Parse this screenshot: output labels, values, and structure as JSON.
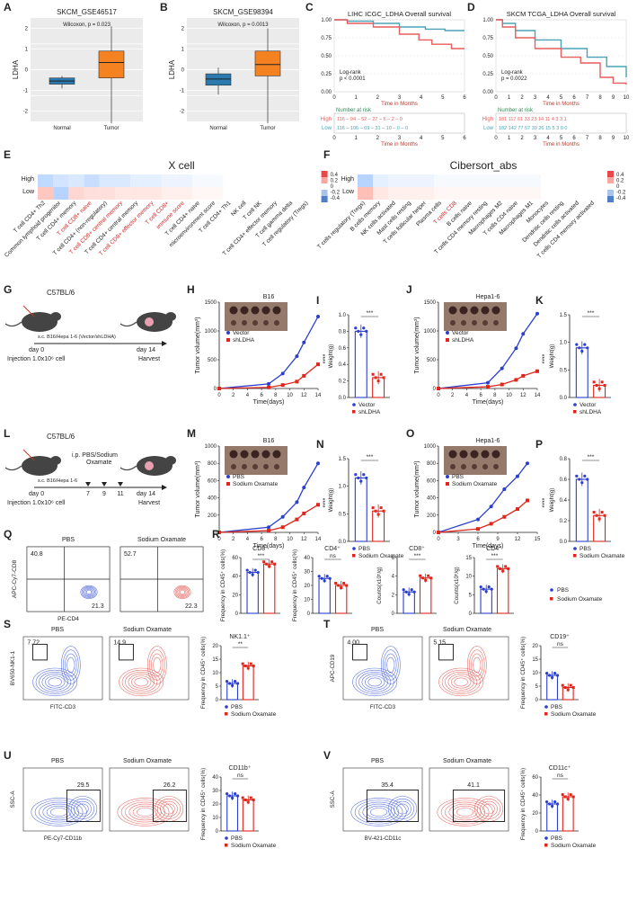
{
  "panels": {
    "A": {
      "letter": "A",
      "title": "SKCM_GSE46517",
      "stat": "Wilcoxon, p = 0.023",
      "ylabel": "LDHA",
      "groups": [
        "Normal",
        "Tumor"
      ],
      "yticks": [
        "2",
        "1",
        "0",
        "-1",
        "-2"
      ],
      "colors": {
        "normal": "#2a7ab0",
        "tumor": "#f58220"
      }
    },
    "B": {
      "letter": "B",
      "title": "SKCM_GSE98394",
      "stat": "Wilcoxon, p = 0.0013",
      "ylabel": "LDHA",
      "groups": [
        "Normal",
        "Tumor"
      ],
      "yticks": [
        "2",
        "1",
        "0",
        "-1",
        "-2"
      ]
    },
    "C": {
      "letter": "C",
      "title": "LIHC ICGC_LDHA Overall survival",
      "logrank": "Log-rank",
      "pval": "p < 0.0001",
      "xlabel": "Time in Months",
      "xticks": [
        "0",
        "1",
        "2",
        "3",
        "4",
        "5",
        "6"
      ],
      "yticks": [
        "1.00",
        "0.75",
        "0.50",
        "0.25",
        "0.00"
      ],
      "risk_title": "Number at risk",
      "risk_high": "High",
      "risk_low": "Low",
      "high_row": "116 – 94 – 52 – 27 – 6 – 2 – 0",
      "low_row": "116 – 106 – 69 – 31 – 10 – 0 – 0"
    },
    "D": {
      "letter": "D",
      "title": "SKCM TCGA_LDHA Overall survival",
      "logrank": "Log-rank",
      "pval": "p = 0.0022",
      "xlabel": "Time in Months",
      "xticks": [
        "0",
        "1",
        "2",
        "3",
        "4",
        "5",
        "6",
        "7",
        "8",
        "9",
        "10"
      ],
      "yticks": [
        "1.00",
        "0.75",
        "0.50",
        "0.25",
        "0.00"
      ],
      "risk_title": "Number at risk",
      "risk_high": "High",
      "risk_low": "Low",
      "high_row": "181 117 61 33 23 14 11 4 3 3 1",
      "low_row": "182 142 77 57 39 26 15 5 3 0 0"
    },
    "E": {
      "letter": "E",
      "title": "X cell",
      "rows": [
        "High",
        "Low"
      ],
      "legend": [
        "0.4",
        "0.2",
        "0",
        "-0.2",
        "-0.4"
      ],
      "cells": [
        {
          "label": "T cell CD4+ Th2",
          "red": false
        },
        {
          "label": "Common lymphoid progenitor",
          "red": false
        },
        {
          "label": "T cell CD4+ memory",
          "red": false
        },
        {
          "label": "T cell CD8+ naive",
          "red": true
        },
        {
          "label": "T cell CD4+ (non-regulatory)",
          "red": false
        },
        {
          "label": "T cell CD8+ central memory",
          "red": true
        },
        {
          "label": "T cell CD4+ central memory",
          "red": false
        },
        {
          "label": "T cell CD8+ effector memory",
          "red": true
        },
        {
          "label": "T cell CD8+",
          "red": true
        },
        {
          "label": "immune score",
          "red": true
        },
        {
          "label": "T cell CD4+ naive",
          "red": false
        },
        {
          "label": "microenvironment score",
          "red": false
        },
        {
          "label": "T cell CD4+ Th1",
          "red": false
        },
        {
          "label": "NK cell",
          "red": false
        },
        {
          "label": "T cell NK",
          "red": false
        },
        {
          "label": "T cell CD4+ effector memory",
          "red": false
        },
        {
          "label": "T cell gamma delta",
          "red": false
        },
        {
          "label": "T cell regulatory (Tregs)",
          "red": false
        }
      ]
    },
    "F": {
      "letter": "F",
      "title": "Cibersort_abs",
      "rows": [
        "High",
        "Low"
      ],
      "legend": [
        "0.4",
        "0.2",
        "0",
        "-0.2",
        "-0.4"
      ],
      "cells": [
        {
          "label": "T cells regulatory (Tregs)",
          "red": false
        },
        {
          "label": "B cells memory",
          "red": false
        },
        {
          "label": "NK cells activated",
          "red": false
        },
        {
          "label": "Mast cells resting",
          "red": false
        },
        {
          "label": "T cells follicular helper",
          "red": false
        },
        {
          "label": "Plasma cells",
          "red": false
        },
        {
          "label": "T cells CD8",
          "red": true
        },
        {
          "label": "B cells naive",
          "red": false
        },
        {
          "label": "T cells CD4 memory resting",
          "red": false
        },
        {
          "label": "Macrophages M2",
          "red": false
        },
        {
          "label": "T cells CD4 naive",
          "red": false
        },
        {
          "label": "Macrophages M1",
          "red": false
        },
        {
          "label": "Monocytes",
          "red": false
        },
        {
          "label": "Dendritic cells resting",
          "red": false
        },
        {
          "label": "Dendritic cells activated",
          "red": false
        },
        {
          "label": "T cells CD4 memory activated",
          "red": false
        }
      ]
    },
    "G": {
      "letter": "G",
      "strain": "C57BL/6",
      "injection_note": "s.c. B16/Hepa 1-6 (Vector/shLDHA)",
      "day0": "day 0",
      "day14": "day 14",
      "injection": "Injection 1.0x10⁶ cell",
      "harvest": "Harvest"
    },
    "H": {
      "letter": "H",
      "title": "B16",
      "ylabel": "Tumor volume(mm³)",
      "xlabel": "Time(days)",
      "xticks": [
        "0",
        "2",
        "4",
        "6",
        "8",
        "10",
        "12",
        "14"
      ],
      "yticks": [
        "1500",
        "1000",
        "500",
        "0"
      ],
      "legend": [
        "Vector",
        "shLDHA"
      ],
      "sig": "****"
    },
    "I": {
      "letter": "I",
      "ylabel": "Weight(g)",
      "yticks": [
        "1.0",
        "0.8",
        "0.6",
        "0.4",
        "0.2",
        "0.0"
      ],
      "sig": "***",
      "legend": [
        "Vector",
        "shLDHA"
      ]
    },
    "J": {
      "letter": "J",
      "title": "Hepa1-6",
      "ylabel": "Tumor volume(mm³)",
      "xlabel": "Time(days)",
      "xticks": [
        "0",
        "2",
        "4",
        "6",
        "8",
        "10",
        "12",
        "14"
      ],
      "yticks": [
        "1500",
        "1000",
        "500",
        "0"
      ],
      "legend": [
        "Vector",
        "shLDHA"
      ],
      "sig": "****"
    },
    "K": {
      "letter": "K",
      "ylabel": "Weight(g)",
      "yticks": [
        "1.5",
        "1.0",
        "0.5",
        "0.0"
      ],
      "sig": "***",
      "legend": [
        "Vector",
        "shLDHA"
      ]
    },
    "L": {
      "letter": "L",
      "strain": "C57BL/6",
      "injection_note": "s.c. B16/Hepa 1-6",
      "treat": "i.p. PBS/Sodium",
      "treat2": "Oxamate",
      "day0": "day 0",
      "d7": "7",
      "d9": "9",
      "d11": "11",
      "day14": "day 14",
      "injection": "Injection 1.0x10⁶ cell",
      "harvest": "Harvest"
    },
    "M": {
      "letter": "M",
      "title": "B16",
      "ylabel": "Tumor volume(mm³)",
      "xlabel": "Time(days)",
      "xticks": [
        "0",
        "2",
        "4",
        "6",
        "8",
        "10",
        "12",
        "14"
      ],
      "yticks": [
        "1000",
        "800",
        "600",
        "400",
        "200",
        "0"
      ],
      "legend": [
        "PBS",
        "Sodium Oxamate"
      ],
      "sig": "****"
    },
    "N": {
      "letter": "N",
      "ylabel": "Weight(g)",
      "yticks": [
        "1.5",
        "1.0",
        "0.5",
        "0.0"
      ],
      "sig": "***",
      "legend": [
        "PBS",
        "Sodium Oxamate"
      ]
    },
    "O": {
      "letter": "O",
      "title": "Hepa1-6",
      "ylabel": "Tumor volume(mm³)",
      "xlabel": "Time(days)",
      "xticks": [
        "0",
        "3",
        "6",
        "9",
        "12",
        "15"
      ],
      "yticks": [
        "1000",
        "800",
        "600",
        "400",
        "200",
        "0"
      ],
      "legend": [
        "PBS",
        "Sodium Oxamate"
      ],
      "sig": "****"
    },
    "P": {
      "letter": "P",
      "ylabel": "Weight(g)",
      "yticks": [
        "0.8",
        "0.6",
        "0.4",
        "0.2",
        "0.0"
      ],
      "sig": "***",
      "legend": [
        "PBS",
        "Sodium Oxamate"
      ]
    },
    "Q": {
      "letter": "Q",
      "pbs": "PBS",
      "ox": "Sodium Oxamate",
      "ylabel": "APC-Cy7-CD8",
      "xlabel": "PE-CD4",
      "pbs_cd8": "40.8",
      "pbs_cd4": "21.3",
      "ox_cd8": "52.7",
      "ox_cd4": "22.3"
    },
    "R": {
      "letter": "R",
      "plots": [
        {
          "title": "CD8⁺",
          "ylabel": "Frequency in CD45⁺ cells(%)",
          "yticks": [
            "60",
            "40",
            "20",
            "0"
          ],
          "sig": "***"
        },
        {
          "title": "CD4⁺",
          "ylabel": "Frequency in CD45⁺ cells(%)",
          "yticks": [
            "40",
            "30",
            "20",
            "10",
            "0"
          ],
          "sig": "ns"
        },
        {
          "title": "CD8⁺",
          "ylabel": "Counts(x10⁵/g)",
          "yticks": [
            "6",
            "4",
            "2",
            "0"
          ],
          "sig": "***"
        },
        {
          "title": "CD4⁺",
          "ylabel": "Counts(x10⁵/g)",
          "yticks": [
            "15",
            "10",
            "5",
            "0"
          ],
          "sig": "***"
        }
      ],
      "legend": [
        "PBS",
        "Sodium Oxamate"
      ]
    },
    "S": {
      "letter": "S",
      "pbs": "PBS",
      "ox": "Sodium Oxamate",
      "ylabel": "BV650-NK1-1",
      "xlabel": "FITC-CD3",
      "pbs_val": "7.72",
      "ox_val": "14.9",
      "bar_title": "NK1.1⁺",
      "bar_ylabel": "Frequency in CD45⁺ cells(%)",
      "bar_yticks": [
        "20",
        "15",
        "10",
        "5",
        "0"
      ],
      "sig": "**",
      "legend": [
        "PBS",
        "Sodium Oxamate"
      ]
    },
    "T": {
      "letter": "T",
      "pbs": "PBS",
      "ox": "Sodium Oxamate",
      "ylabel": "APC-CD19",
      "xlabel": "FITC-CD3",
      "pbs_val": "4.00",
      "ox_val": "5.15",
      "bar_title": "CD19⁺",
      "bar_ylabel": "Frequency in CD45⁺ cells(%)",
      "bar_yticks": [
        "20",
        "15",
        "10",
        "5",
        "0"
      ],
      "sig": "ns",
      "legend": [
        "PBS",
        "Sodium Oxamate"
      ]
    },
    "U": {
      "letter": "U",
      "pbs": "PBS",
      "ox": "Sodium Oxamate",
      "ylabel": "SSC-A",
      "xlabel": "PE-Cy7-CD11b",
      "pbs_val": "29.5",
      "ox_val": "26.2",
      "bar_title": "CD11b⁺",
      "bar_ylabel": "Frequency in CD45⁺ cells(%)",
      "bar_yticks": [
        "40",
        "30",
        "20",
        "10",
        "0"
      ],
      "sig": "ns",
      "legend": [
        "PBS",
        "Sodium Oxamate"
      ]
    },
    "V": {
      "letter": "V",
      "pbs": "PBS",
      "ox": "Sodium Oxamate",
      "ylabel": "SSC-A",
      "xlabel": "BV-421-CD11c",
      "pbs_val": "35.4",
      "ox_val": "41.1",
      "bar_title": "CD11c⁺",
      "bar_ylabel": "Frequency in CD45⁺ cells(%)",
      "bar_yticks": [
        "60",
        "40",
        "20",
        "0"
      ],
      "sig": "ns",
      "legend": [
        "PBS",
        "Sodium Oxamate"
      ]
    }
  },
  "colors": {
    "blue": "#2b3fcf",
    "red": "#e0251b",
    "box_blue": "#2a7ab0",
    "box_orange": "#f58220",
    "km_high": "#e85d5d",
    "km_low": "#4aa3b5"
  },
  "chart_data": [
    {
      "type": "box",
      "panel": "A",
      "categories": [
        "Normal",
        "Tumor"
      ],
      "median": [
        -0.55,
        0.35
      ],
      "q1": [
        -0.7,
        -0.4
      ],
      "q3": [
        -0.4,
        0.9
      ],
      "whisker": [
        [
          -0.9,
          -0.3
        ],
        [
          -2.6,
          2.1
        ]
      ],
      "ylim": [
        -2.5,
        2.5
      ]
    },
    {
      "type": "box",
      "panel": "B",
      "categories": [
        "Normal",
        "Tumor"
      ],
      "median": [
        -0.45,
        0.25
      ],
      "q1": [
        -0.75,
        -0.3
      ],
      "q3": [
        -0.2,
        0.9
      ],
      "whisker": [
        [
          -1.2,
          0.1
        ],
        [
          -2.6,
          2.0
        ]
      ],
      "ylim": [
        -2.5,
        2.5
      ]
    },
    {
      "type": "line",
      "panel": "H",
      "x": [
        0,
        7,
        9,
        11,
        12,
        14
      ],
      "series": [
        {
          "name": "Vector",
          "values": [
            0,
            80,
            260,
            560,
            800,
            1250
          ]
        },
        {
          "name": "shLDHA",
          "values": [
            0,
            20,
            60,
            120,
            220,
            420
          ]
        }
      ],
      "ylim": [
        0,
        1500
      ]
    },
    {
      "type": "line",
      "panel": "J",
      "x": [
        0,
        7,
        9,
        11,
        12,
        14
      ],
      "series": [
        {
          "name": "Vector",
          "values": [
            0,
            100,
            350,
            700,
            950,
            1300
          ]
        },
        {
          "name": "shLDHA",
          "values": [
            0,
            30,
            70,
            150,
            220,
            300
          ]
        }
      ],
      "ylim": [
        0,
        1500
      ]
    },
    {
      "type": "line",
      "panel": "M",
      "x": [
        0,
        7,
        9,
        11,
        12,
        14
      ],
      "series": [
        {
          "name": "PBS",
          "values": [
            0,
            60,
            180,
            350,
            520,
            800
          ]
        },
        {
          "name": "Sodium Oxamate",
          "values": [
            0,
            20,
            60,
            150,
            220,
            320
          ]
        }
      ],
      "ylim": [
        0,
        1000
      ]
    },
    {
      "type": "line",
      "panel": "O",
      "x": [
        0,
        6,
        8,
        10,
        12,
        13.5
      ],
      "series": [
        {
          "name": "PBS",
          "values": [
            0,
            150,
            300,
            500,
            650,
            800
          ]
        },
        {
          "name": "Sodium Oxamate",
          "values": [
            0,
            40,
            100,
            180,
            270,
            370
          ]
        }
      ],
      "ylim": [
        0,
        1000
      ]
    },
    {
      "type": "bar",
      "panel": "I",
      "categories": [
        "Vector",
        "shLDHA"
      ],
      "values": [
        0.8,
        0.24
      ],
      "ylim": [
        0,
        1.0
      ]
    },
    {
      "type": "bar",
      "panel": "K",
      "categories": [
        "Vector",
        "shLDHA"
      ],
      "values": [
        0.9,
        0.22
      ],
      "ylim": [
        0,
        1.5
      ]
    },
    {
      "type": "bar",
      "panel": "N",
      "categories": [
        "PBS",
        "Sodium Oxamate"
      ],
      "values": [
        1.15,
        0.55
      ],
      "ylim": [
        0,
        1.5
      ]
    },
    {
      "type": "bar",
      "panel": "P",
      "categories": [
        "PBS",
        "Sodium Oxamate"
      ],
      "values": [
        0.6,
        0.25
      ],
      "ylim": [
        0,
        0.8
      ]
    },
    {
      "type": "bar",
      "panel": "R1",
      "categories": [
        "PBS",
        "Sodium Oxamate"
      ],
      "values": [
        44,
        53
      ],
      "ylim": [
        0,
        60
      ]
    },
    {
      "type": "bar",
      "panel": "R2",
      "categories": [
        "PBS",
        "Sodium Oxamate"
      ],
      "values": [
        25,
        20
      ],
      "ylim": [
        0,
        40
      ]
    },
    {
      "type": "bar",
      "panel": "R3",
      "categories": [
        "PBS",
        "Sodium Oxamate"
      ],
      "values": [
        2.3,
        3.8
      ],
      "ylim": [
        0,
        6
      ]
    },
    {
      "type": "bar",
      "panel": "R4",
      "categories": [
        "PBS",
        "Sodium Oxamate"
      ],
      "values": [
        6.5,
        12
      ],
      "ylim": [
        0,
        15
      ]
    },
    {
      "type": "bar",
      "panel": "S",
      "categories": [
        "PBS",
        "Sodium Oxamate"
      ],
      "values": [
        6,
        12.5
      ],
      "ylim": [
        0,
        20
      ]
    },
    {
      "type": "bar",
      "panel": "T",
      "categories": [
        "PBS",
        "Sodium Oxamate"
      ],
      "values": [
        9,
        4.5
      ],
      "ylim": [
        0,
        20
      ]
    },
    {
      "type": "bar",
      "panel": "U",
      "categories": [
        "PBS",
        "Sodium Oxamate"
      ],
      "values": [
        26,
        23
      ],
      "ylim": [
        0,
        40
      ]
    },
    {
      "type": "bar",
      "panel": "V",
      "categories": [
        "PBS",
        "Sodium Oxamate"
      ],
      "values": [
        30,
        38
      ],
      "ylim": [
        0,
        60
      ]
    }
  ]
}
